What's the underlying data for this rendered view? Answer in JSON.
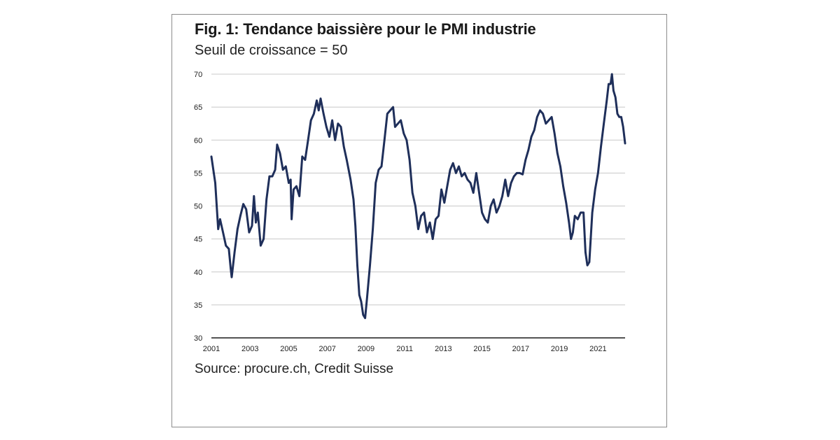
{
  "title": "Fig. 1: Tendance baissière pour le PMI industrie",
  "subtitle": "Seuil de croissance = 50",
  "source": "Source: procure.ch, Credit Suisse",
  "line_color": "#1f2f5a",
  "grid_color": "#c8c8c8",
  "chart_data": {
    "type": "line",
    "title": "Fig. 1: Tendance baissière pour le PMI industrie",
    "subtitle": "Seuil de croissance = 50",
    "xlabel": "",
    "ylabel": "",
    "xlim": [
      2001,
      2022.4
    ],
    "ylim": [
      30,
      70
    ],
    "grid": "horizontal",
    "y_ticks": [
      30,
      35,
      40,
      45,
      50,
      55,
      60,
      65,
      70
    ],
    "x_ticks": [
      "2001",
      "2003",
      "2005",
      "2007",
      "2009",
      "2011",
      "2013",
      "2015",
      "2017",
      "2019",
      "2021"
    ],
    "series": [
      {
        "values": [
          [
            2001.0,
            57.5
          ],
          [
            2001.2,
            53.5
          ],
          [
            2001.35,
            46.5
          ],
          [
            2001.45,
            48.0
          ],
          [
            2001.6,
            46.0
          ],
          [
            2001.75,
            44.0
          ],
          [
            2001.9,
            43.5
          ],
          [
            2002.0,
            40.5
          ],
          [
            2002.05,
            39.2
          ],
          [
            2002.2,
            43.0
          ],
          [
            2002.35,
            46.5
          ],
          [
            2002.5,
            48.5
          ],
          [
            2002.65,
            50.3
          ],
          [
            2002.8,
            49.5
          ],
          [
            2002.95,
            46.0
          ],
          [
            2003.1,
            47.0
          ],
          [
            2003.2,
            51.5
          ],
          [
            2003.3,
            47.5
          ],
          [
            2003.4,
            49.0
          ],
          [
            2003.55,
            44.0
          ],
          [
            2003.7,
            45.0
          ],
          [
            2003.85,
            51.0
          ],
          [
            2004.0,
            54.5
          ],
          [
            2004.15,
            54.5
          ],
          [
            2004.3,
            55.5
          ],
          [
            2004.4,
            59.3
          ],
          [
            2004.55,
            58.0
          ],
          [
            2004.7,
            55.5
          ],
          [
            2004.85,
            56.0
          ],
          [
            2005.0,
            53.5
          ],
          [
            2005.1,
            54.0
          ],
          [
            2005.15,
            48.0
          ],
          [
            2005.25,
            52.5
          ],
          [
            2005.4,
            53.0
          ],
          [
            2005.55,
            51.5
          ],
          [
            2005.7,
            57.5
          ],
          [
            2005.85,
            57.0
          ],
          [
            2006.0,
            60.0
          ],
          [
            2006.15,
            63.0
          ],
          [
            2006.3,
            64.0
          ],
          [
            2006.45,
            66.0
          ],
          [
            2006.55,
            64.5
          ],
          [
            2006.65,
            66.3
          ],
          [
            2006.8,
            64.0
          ],
          [
            2006.95,
            62.0
          ],
          [
            2007.1,
            60.5
          ],
          [
            2007.25,
            63.0
          ],
          [
            2007.4,
            60.0
          ],
          [
            2007.55,
            62.5
          ],
          [
            2007.7,
            62.0
          ],
          [
            2007.85,
            59.0
          ],
          [
            2008.0,
            57.0
          ],
          [
            2008.2,
            54.0
          ],
          [
            2008.35,
            51.0
          ],
          [
            2008.45,
            47.0
          ],
          [
            2008.55,
            41.0
          ],
          [
            2008.65,
            36.5
          ],
          [
            2008.75,
            35.5
          ],
          [
            2008.85,
            33.5
          ],
          [
            2008.95,
            33.0
          ],
          [
            2009.05,
            36.0
          ],
          [
            2009.2,
            41.0
          ],
          [
            2009.35,
            46.5
          ],
          [
            2009.5,
            53.5
          ],
          [
            2009.65,
            55.5
          ],
          [
            2009.8,
            56.0
          ],
          [
            2009.95,
            60.0
          ],
          [
            2010.1,
            64.0
          ],
          [
            2010.25,
            64.5
          ],
          [
            2010.4,
            65.0
          ],
          [
            2010.5,
            62.0
          ],
          [
            2010.65,
            62.5
          ],
          [
            2010.8,
            63.0
          ],
          [
            2010.95,
            61.0
          ],
          [
            2011.1,
            60.0
          ],
          [
            2011.25,
            57.0
          ],
          [
            2011.4,
            52.0
          ],
          [
            2011.55,
            50.0
          ],
          [
            2011.7,
            46.5
          ],
          [
            2011.85,
            48.5
          ],
          [
            2012.0,
            49.0
          ],
          [
            2012.15,
            46.0
          ],
          [
            2012.3,
            47.5
          ],
          [
            2012.45,
            45.0
          ],
          [
            2012.6,
            48.0
          ],
          [
            2012.75,
            48.5
          ],
          [
            2012.9,
            52.5
          ],
          [
            2013.05,
            50.5
          ],
          [
            2013.2,
            53.0
          ],
          [
            2013.35,
            55.5
          ],
          [
            2013.5,
            56.5
          ],
          [
            2013.65,
            55.0
          ],
          [
            2013.8,
            56.0
          ],
          [
            2013.95,
            54.5
          ],
          [
            2014.1,
            55.0
          ],
          [
            2014.25,
            54.0
          ],
          [
            2014.4,
            53.5
          ],
          [
            2014.55,
            52.0
          ],
          [
            2014.7,
            55.0
          ],
          [
            2014.85,
            52.0
          ],
          [
            2015.0,
            49.0
          ],
          [
            2015.15,
            48.0
          ],
          [
            2015.3,
            47.5
          ],
          [
            2015.45,
            50.0
          ],
          [
            2015.6,
            51.0
          ],
          [
            2015.75,
            49.0
          ],
          [
            2015.9,
            50.0
          ],
          [
            2016.05,
            51.5
          ],
          [
            2016.2,
            54.0
          ],
          [
            2016.35,
            51.5
          ],
          [
            2016.5,
            53.5
          ],
          [
            2016.65,
            54.5
          ],
          [
            2016.8,
            55.0
          ],
          [
            2016.95,
            55.0
          ],
          [
            2017.1,
            54.8
          ],
          [
            2017.25,
            57.0
          ],
          [
            2017.4,
            58.5
          ],
          [
            2017.55,
            60.5
          ],
          [
            2017.7,
            61.5
          ],
          [
            2017.85,
            63.5
          ],
          [
            2018.0,
            64.5
          ],
          [
            2018.15,
            64.0
          ],
          [
            2018.3,
            62.5
          ],
          [
            2018.45,
            63.0
          ],
          [
            2018.6,
            63.5
          ],
          [
            2018.75,
            61.0
          ],
          [
            2018.9,
            58.0
          ],
          [
            2019.05,
            56.0
          ],
          [
            2019.2,
            53.0
          ],
          [
            2019.35,
            50.5
          ],
          [
            2019.5,
            47.5
          ],
          [
            2019.6,
            45.0
          ],
          [
            2019.7,
            46.0
          ],
          [
            2019.8,
            48.5
          ],
          [
            2019.95,
            48.0
          ],
          [
            2020.1,
            49.0
          ],
          [
            2020.25,
            49.0
          ],
          [
            2020.35,
            43.0
          ],
          [
            2020.45,
            41.0
          ],
          [
            2020.55,
            41.5
          ],
          [
            2020.7,
            49.0
          ],
          [
            2020.85,
            52.5
          ],
          [
            2021.0,
            55.0
          ],
          [
            2021.15,
            59.0
          ],
          [
            2021.3,
            62.5
          ],
          [
            2021.45,
            66.0
          ],
          [
            2021.55,
            68.5
          ],
          [
            2021.65,
            68.5
          ],
          [
            2021.72,
            70.0
          ],
          [
            2021.8,
            67.5
          ],
          [
            2021.9,
            66.5
          ],
          [
            2022.0,
            64.0
          ],
          [
            2022.1,
            63.5
          ],
          [
            2022.2,
            63.5
          ],
          [
            2022.3,
            62.0
          ],
          [
            2022.4,
            59.5
          ]
        ]
      }
    ]
  }
}
